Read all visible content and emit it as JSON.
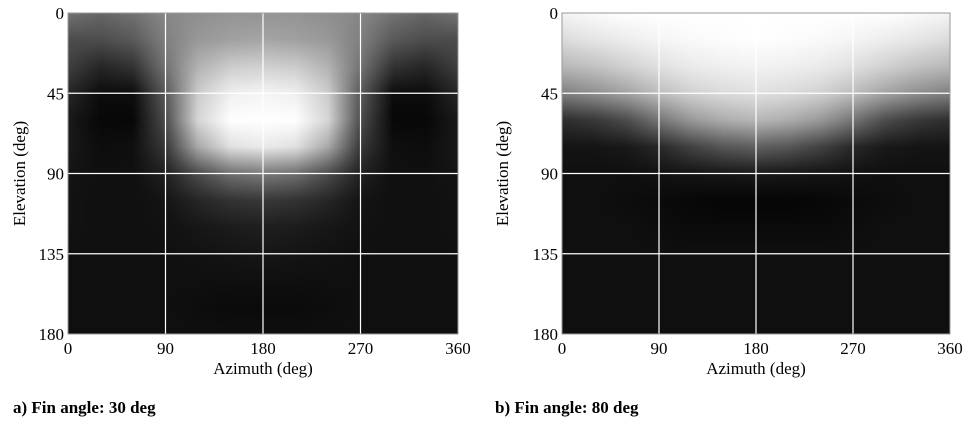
{
  "chart_data": [
    {
      "type": "heatmap",
      "caption": "a) Fin angle: 30 deg",
      "xlabel": "Azimuth (deg)",
      "ylabel": "Elevation (deg)",
      "xlim": [
        0,
        360
      ],
      "ylim": [
        180,
        0
      ],
      "xticks": [
        "0",
        "90",
        "180",
        "270",
        "360"
      ],
      "yticks": [
        "0",
        "45",
        "90",
        "135",
        "180"
      ],
      "grid": true,
      "colormap": "gray",
      "x": [
        0,
        30,
        60,
        90,
        120,
        150,
        180,
        210,
        240,
        270,
        300,
        330,
        360
      ],
      "y": [
        0,
        15,
        30,
        45,
        60,
        75,
        90,
        105,
        120,
        135,
        150,
        165,
        180
      ],
      "values": [
        [
          0.45,
          0.4,
          0.45,
          0.53,
          0.56,
          0.58,
          0.58,
          0.58,
          0.56,
          0.53,
          0.45,
          0.4,
          0.45
        ],
        [
          0.3,
          0.3,
          0.35,
          0.5,
          0.6,
          0.63,
          0.65,
          0.63,
          0.6,
          0.5,
          0.35,
          0.3,
          0.3
        ],
        [
          0.25,
          0.15,
          0.2,
          0.45,
          0.7,
          0.8,
          0.82,
          0.8,
          0.7,
          0.45,
          0.2,
          0.15,
          0.25
        ],
        [
          0.15,
          0.05,
          0.05,
          0.35,
          0.8,
          0.94,
          0.96,
          0.94,
          0.8,
          0.35,
          0.05,
          0.05,
          0.15
        ],
        [
          0.1,
          0.03,
          0.03,
          0.3,
          0.84,
          1.0,
          1.0,
          1.0,
          0.84,
          0.3,
          0.03,
          0.03,
          0.1
        ],
        [
          0.1,
          0.05,
          0.06,
          0.22,
          0.66,
          0.88,
          0.92,
          0.88,
          0.66,
          0.22,
          0.06,
          0.05,
          0.1
        ],
        [
          0.08,
          0.06,
          0.06,
          0.13,
          0.3,
          0.44,
          0.48,
          0.44,
          0.3,
          0.13,
          0.06,
          0.06,
          0.08
        ],
        [
          0.07,
          0.06,
          0.06,
          0.08,
          0.15,
          0.2,
          0.22,
          0.2,
          0.15,
          0.08,
          0.06,
          0.06,
          0.07
        ],
        [
          0.07,
          0.06,
          0.06,
          0.07,
          0.09,
          0.11,
          0.12,
          0.11,
          0.09,
          0.07,
          0.06,
          0.06,
          0.07
        ],
        [
          0.06,
          0.06,
          0.06,
          0.06,
          0.07,
          0.08,
          0.09,
          0.08,
          0.07,
          0.06,
          0.06,
          0.06,
          0.06
        ],
        [
          0.06,
          0.06,
          0.06,
          0.06,
          0.06,
          0.06,
          0.06,
          0.06,
          0.06,
          0.06,
          0.06,
          0.06,
          0.06
        ],
        [
          0.06,
          0.06,
          0.06,
          0.06,
          0.05,
          0.04,
          0.04,
          0.04,
          0.05,
          0.06,
          0.06,
          0.06,
          0.06
        ],
        [
          0.06,
          0.06,
          0.06,
          0.06,
          0.06,
          0.06,
          0.06,
          0.06,
          0.06,
          0.06,
          0.06,
          0.06,
          0.06
        ]
      ]
    },
    {
      "type": "heatmap",
      "caption": "b) Fin angle: 80 deg",
      "xlabel": "Azimuth (deg)",
      "ylabel": "Elevation (deg)",
      "xlim": [
        0,
        360
      ],
      "ylim": [
        180,
        0
      ],
      "xticks": [
        "0",
        "90",
        "180",
        "270",
        "360"
      ],
      "yticks": [
        "0",
        "45",
        "90",
        "135",
        "180"
      ],
      "grid": true,
      "colormap": "gray",
      "x": [
        0,
        30,
        60,
        90,
        120,
        150,
        180,
        210,
        240,
        270,
        300,
        330,
        360
      ],
      "y": [
        0,
        15,
        30,
        45,
        60,
        75,
        90,
        105,
        120,
        135,
        150,
        165,
        180
      ],
      "values": [
        [
          0.96,
          0.98,
          1.0,
          1.0,
          1.0,
          1.0,
          1.0,
          1.0,
          1.0,
          1.0,
          1.0,
          0.98,
          0.96
        ],
        [
          0.86,
          0.9,
          0.93,
          0.96,
          0.98,
          0.99,
          1.0,
          0.99,
          0.98,
          0.96,
          0.93,
          0.9,
          0.86
        ],
        [
          0.72,
          0.76,
          0.82,
          0.88,
          0.92,
          0.94,
          0.95,
          0.94,
          0.92,
          0.88,
          0.82,
          0.76,
          0.72
        ],
        [
          0.5,
          0.56,
          0.64,
          0.74,
          0.82,
          0.86,
          0.88,
          0.86,
          0.82,
          0.74,
          0.64,
          0.56,
          0.5
        ],
        [
          0.18,
          0.22,
          0.3,
          0.46,
          0.6,
          0.68,
          0.72,
          0.68,
          0.6,
          0.46,
          0.3,
          0.22,
          0.18
        ],
        [
          0.08,
          0.08,
          0.1,
          0.16,
          0.26,
          0.34,
          0.38,
          0.34,
          0.26,
          0.16,
          0.1,
          0.08,
          0.08
        ],
        [
          0.06,
          0.06,
          0.06,
          0.07,
          0.08,
          0.09,
          0.1,
          0.09,
          0.08,
          0.07,
          0.06,
          0.06,
          0.06
        ],
        [
          0.06,
          0.06,
          0.05,
          0.04,
          0.03,
          0.02,
          0.02,
          0.02,
          0.03,
          0.04,
          0.05,
          0.06,
          0.06
        ],
        [
          0.06,
          0.06,
          0.06,
          0.05,
          0.04,
          0.04,
          0.04,
          0.04,
          0.04,
          0.05,
          0.06,
          0.06,
          0.06
        ],
        [
          0.06,
          0.06,
          0.06,
          0.06,
          0.06,
          0.06,
          0.06,
          0.06,
          0.06,
          0.06,
          0.06,
          0.06,
          0.06
        ],
        [
          0.06,
          0.06,
          0.06,
          0.06,
          0.06,
          0.06,
          0.06,
          0.06,
          0.06,
          0.06,
          0.06,
          0.06,
          0.06
        ],
        [
          0.06,
          0.06,
          0.06,
          0.06,
          0.06,
          0.06,
          0.06,
          0.06,
          0.06,
          0.06,
          0.06,
          0.06,
          0.06
        ],
        [
          0.06,
          0.06,
          0.06,
          0.06,
          0.06,
          0.06,
          0.06,
          0.06,
          0.06,
          0.06,
          0.06,
          0.06,
          0.06
        ]
      ]
    }
  ]
}
